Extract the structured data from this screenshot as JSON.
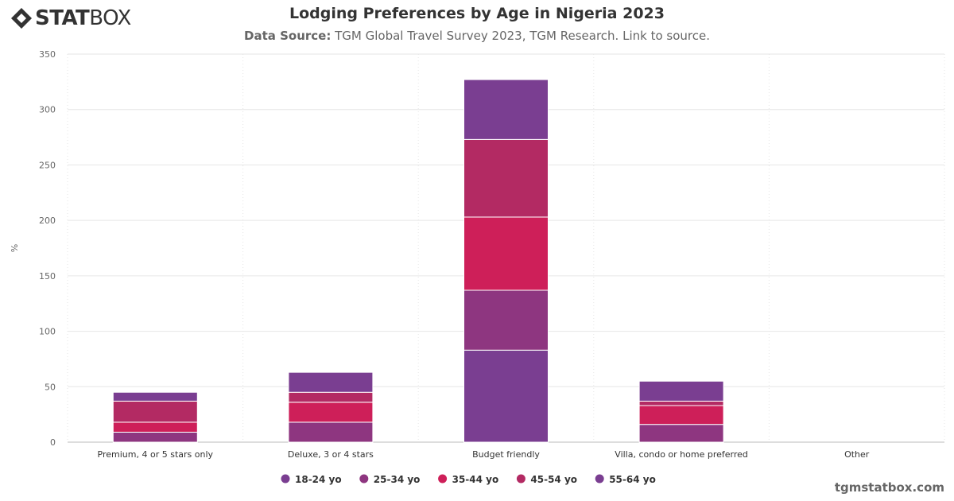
{
  "brand": {
    "logo_text_bold": "STAT",
    "logo_text_light": "BOX"
  },
  "header": {
    "title": "Lodging Preferences by Age in Nigeria 2023",
    "source_label": "Data Source:",
    "source_text": "TGM Global Travel Survey 2023, TGM Research. Link to source."
  },
  "footer": {
    "site": "tgmstatbox.com"
  },
  "chart_data": {
    "type": "bar",
    "stacked": true,
    "categories": [
      "Premium, 4 or 5 stars only",
      "Deluxe, 3 or 4 stars",
      "Budget friendly",
      "Villa, condo or home preferred",
      "Other"
    ],
    "ylabel": "%",
    "ylim": [
      0,
      350
    ],
    "yticks": [
      0,
      50,
      100,
      150,
      200,
      250,
      300,
      350
    ],
    "grid": true,
    "legend_position": "bottom-center",
    "series": [
      {
        "name": "18-24 yo",
        "color": "#7a3e91",
        "values": [
          0,
          0,
          83,
          0,
          0
        ]
      },
      {
        "name": "25-34 yo",
        "color": "#8e3680",
        "values": [
          9,
          18,
          54,
          16,
          0
        ]
      },
      {
        "name": "35-44 yo",
        "color": "#ce1f59",
        "values": [
          9,
          18,
          66,
          17,
          0
        ]
      },
      {
        "name": "45-54 yo",
        "color": "#b32a63",
        "values": [
          19,
          9,
          70,
          4,
          0
        ]
      },
      {
        "name": "55-64 yo",
        "color": "#7a3e91",
        "values": [
          8,
          18,
          54,
          18,
          0
        ]
      }
    ]
  }
}
